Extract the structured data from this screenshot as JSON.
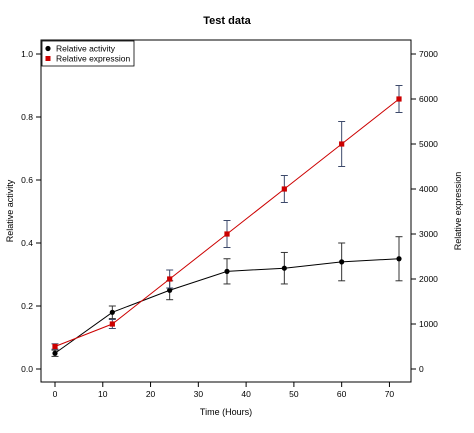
{
  "chart_data": {
    "type": "line",
    "title": "Test data",
    "xlabel": "Time (Hours)",
    "ylabel": "Relative activity",
    "y2label": "Relative expression",
    "x": [
      0,
      12,
      24,
      36,
      48,
      60,
      72
    ],
    "xlim": [
      0,
      72
    ],
    "ylim": [
      0,
      1.0
    ],
    "y2lim": [
      0,
      7000
    ],
    "x_ticks": [
      "0",
      "10",
      "20",
      "30",
      "40",
      "50",
      "60",
      "70"
    ],
    "y_ticks": [
      "0.0",
      "0.2",
      "0.4",
      "0.6",
      "0.8",
      "1.0"
    ],
    "y2_ticks": [
      "0",
      "1000",
      "2000",
      "3000",
      "4000",
      "5000",
      "6000",
      "7000"
    ],
    "grid": false,
    "legend_position": "top-left",
    "series": [
      {
        "name": "Relative activity",
        "axis": "left",
        "color": "#000000",
        "marker": "circle",
        "values": [
          0.05,
          0.18,
          0.25,
          0.31,
          0.32,
          0.34,
          0.35
        ],
        "errors": [
          0.01,
          0.02,
          0.03,
          0.04,
          0.05,
          0.06,
          0.07
        ]
      },
      {
        "name": "Relative expression",
        "axis": "right",
        "color": "#cc0000",
        "marker": "square",
        "values": [
          500,
          1000,
          2000,
          3000,
          4000,
          5000,
          6000
        ],
        "errors": [
          60,
          100,
          200,
          300,
          300,
          500,
          300
        ]
      }
    ]
  }
}
